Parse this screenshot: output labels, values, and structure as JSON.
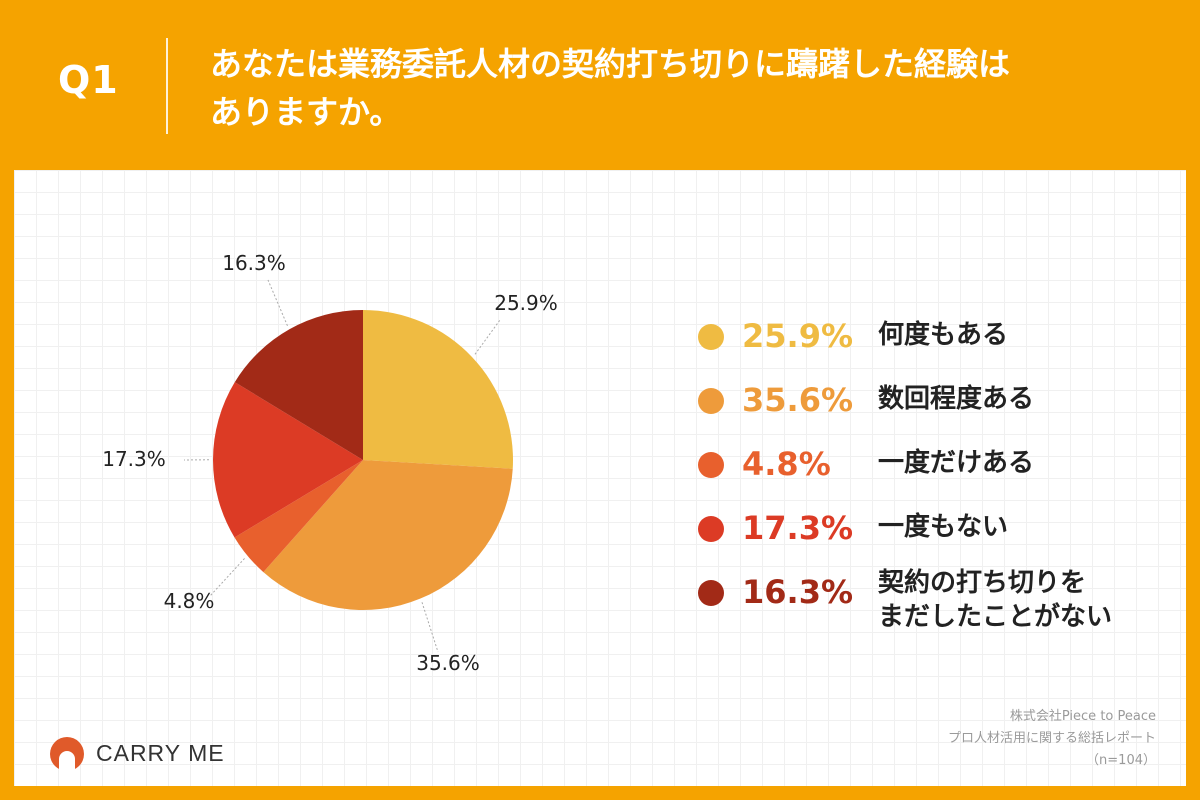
{
  "header": {
    "question_no": "Q1",
    "question_line1": "あなたは業務委託人材の契約打ち切りに躊躇した経験は",
    "question_line2": "ありますか。"
  },
  "chart_data": {
    "type": "pie",
    "title": "あなたは業務委託人材の契約打ち切りに躊躇した経験はありますか。",
    "start_angle": "12 o'clock",
    "direction": "clockwise",
    "slices": [
      {
        "label": "何度もある",
        "label_line2": "",
        "value": 25.9,
        "display": "25.9%",
        "color": "#efbb42"
      },
      {
        "label": "数回程度ある",
        "label_line2": "",
        "value": 35.6,
        "display": "35.6%",
        "color": "#ee9b3b"
      },
      {
        "label": "一度だけある",
        "label_line2": "",
        "value": 4.8,
        "display": "4.8%",
        "color": "#e8602d"
      },
      {
        "label": "一度もない",
        "label_line2": "",
        "value": 17.3,
        "display": "17.3%",
        "color": "#dc3b25"
      },
      {
        "label": "契約の打ち切りを",
        "label_line2": "まだしたことがない",
        "value": 16.3,
        "display": "16.3%",
        "color": "#a22a17"
      }
    ]
  },
  "footer": {
    "brand": "CARRY ME",
    "brand_color": "#e05a2a",
    "source_company": "株式会社Piece to Peace",
    "source_report": "プロ人材活用に関する総括レポート",
    "sample_size": "（n=104）"
  }
}
